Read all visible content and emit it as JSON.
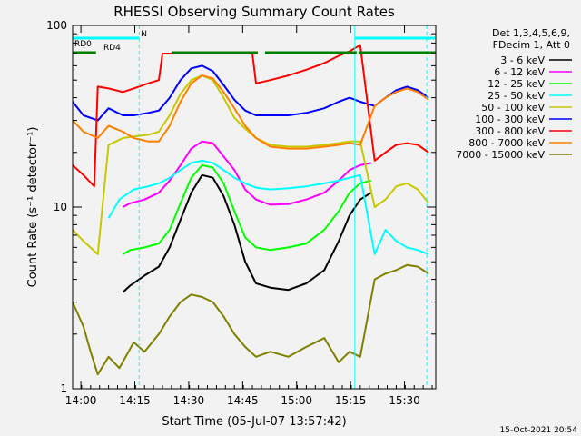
{
  "chart_data": {
    "type": "line",
    "title": "RHESSI Observing Summary Count Rates",
    "xlabel": "Start Time (05-Jul-07 13:57:42)",
    "ylabel": "Count Rate (s⁻¹ detector⁻¹)",
    "x_unit": "minutes after 13:57:42",
    "x_ticks": [
      {
        "label": "14:00",
        "value": 2.3
      },
      {
        "label": "14:15",
        "value": 17.3
      },
      {
        "label": "14:30",
        "value": 32.3
      },
      {
        "label": "14:45",
        "value": 47.3
      },
      {
        "label": "15:00",
        "value": 62.3
      },
      {
        "label": "15:15",
        "value": 77.3
      },
      {
        "label": "15:30",
        "value": 92.3
      }
    ],
    "y_scale": "log",
    "ylim": [
      1,
      100
    ],
    "y_ticks": [
      {
        "label": "1",
        "value": 1
      },
      {
        "label": "10",
        "value": 10
      },
      {
        "label": "100",
        "value": 100
      }
    ],
    "xlim": [
      0,
      101
    ],
    "legend_header": [
      "Det 1,3,4,5,6,9,",
      "FDecim 1, Att 0"
    ],
    "legend_position": "right",
    "series": [
      {
        "name": "3 - 6 keV",
        "color": "#000000",
        "x": [
          14,
          16,
          20,
          24,
          27,
          30,
          33,
          36,
          39,
          42,
          45,
          48,
          51,
          55,
          60,
          65,
          70,
          74,
          77,
          80,
          83
        ],
        "y": [
          3.4,
          3.7,
          4.2,
          4.7,
          6.0,
          8.5,
          12.0,
          15.0,
          14.5,
          11.5,
          8.0,
          5.0,
          3.8,
          3.6,
          3.5,
          3.8,
          4.5,
          6.5,
          9.0,
          11.0,
          12.0
        ]
      },
      {
        "name": "6 - 12 keV",
        "color": "#ff00ff",
        "x": [
          14,
          16,
          20,
          24,
          27,
          30,
          33,
          36,
          39,
          42,
          45,
          48,
          51,
          55,
          60,
          65,
          70,
          74,
          77,
          80,
          83
        ],
        "y": [
          10.0,
          10.5,
          11.0,
          12.0,
          14.0,
          17.0,
          21.0,
          23.0,
          22.5,
          19.0,
          16.0,
          12.5,
          11.0,
          10.3,
          10.4,
          11.0,
          12.0,
          14.0,
          16.0,
          17.0,
          17.5
        ]
      },
      {
        "name": "12 - 25 keV",
        "color": "#00ff00",
        "x": [
          14,
          16,
          20,
          24,
          27,
          30,
          33,
          36,
          39,
          42,
          45,
          48,
          51,
          55,
          60,
          65,
          70,
          74,
          77,
          80,
          83
        ],
        "y": [
          5.5,
          5.8,
          6.0,
          6.3,
          7.5,
          10.5,
          14.5,
          17.0,
          16.5,
          13.5,
          9.5,
          6.8,
          6.0,
          5.8,
          6.0,
          6.3,
          7.5,
          9.5,
          12.0,
          13.5,
          14.0
        ]
      },
      {
        "name": "25 - 50 keV",
        "color": "#00ffff",
        "x": [
          10,
          13,
          17,
          21,
          24,
          27,
          30,
          33,
          36,
          39,
          42,
          45,
          48,
          51,
          55,
          60,
          65,
          70,
          74,
          77,
          80,
          84,
          87,
          90,
          93,
          96,
          99
        ],
        "y": [
          8.7,
          11.0,
          12.5,
          13.0,
          13.5,
          14.5,
          16.0,
          17.5,
          18.0,
          17.5,
          16.0,
          14.5,
          13.5,
          12.8,
          12.5,
          12.7,
          13.0,
          13.5,
          14.0,
          14.5,
          15.0,
          5.5,
          7.5,
          6.5,
          6.0,
          5.8,
          5.5
        ]
      },
      {
        "name": "50 - 100 keV",
        "color": "#c8c800",
        "x": [
          0,
          3,
          7,
          10,
          14,
          17,
          21,
          24,
          27,
          30,
          33,
          36,
          39,
          42,
          45,
          48,
          51,
          55,
          60,
          65,
          70,
          74,
          77,
          80,
          84,
          87,
          90,
          93,
          96,
          99
        ],
        "y": [
          7.5,
          6.5,
          5.5,
          22.0,
          24.0,
          24.5,
          25.0,
          26.0,
          32.0,
          42.0,
          50.0,
          53.0,
          50.0,
          40.0,
          31.0,
          27.0,
          24.0,
          22.0,
          21.5,
          21.5,
          22.0,
          22.5,
          23.0,
          23.0,
          10.0,
          11.0,
          13.0,
          13.5,
          12.5,
          10.5
        ]
      },
      {
        "name": "100 - 300 keV",
        "color": "#0000ff",
        "x": [
          0,
          3,
          7,
          10,
          14,
          17,
          21,
          24,
          27,
          30,
          33,
          36,
          39,
          42,
          45,
          48,
          51,
          55,
          60,
          65,
          70,
          74,
          77,
          80,
          84,
          87,
          90,
          93,
          96,
          99
        ],
        "y": [
          38.0,
          32.0,
          30.0,
          35.0,
          32.0,
          32.0,
          33.0,
          34.0,
          40.0,
          50.0,
          58.0,
          60.0,
          56.0,
          47.0,
          39.0,
          34.0,
          32.0,
          32.0,
          32.0,
          33.0,
          35.0,
          38.0,
          40.0,
          38.0,
          36.0,
          40.0,
          44.0,
          46.0,
          44.0,
          40.0
        ]
      },
      {
        "name": "300 - 800 keV",
        "color": "#ff0000",
        "x": [
          0,
          3,
          6,
          7,
          10,
          14,
          17,
          21,
          24,
          25,
          30,
          35,
          40,
          45,
          50,
          51,
          55,
          60,
          65,
          70,
          74,
          77,
          80,
          84,
          87,
          90,
          93,
          96,
          99
        ],
        "y": [
          17.0,
          15.0,
          13.0,
          46.0,
          45.0,
          43.0,
          45.0,
          48.0,
          50.0,
          70.0,
          70.0,
          70.0,
          70.0,
          70.0,
          70.0,
          48.0,
          50.0,
          53.0,
          57.0,
          62.0,
          68.0,
          72.0,
          78.0,
          18.0,
          20.0,
          22.0,
          22.5,
          22.0,
          20.0
        ]
      },
      {
        "name": "800 - 7000 keV",
        "color": "#ff8000",
        "x": [
          0,
          3,
          7,
          10,
          14,
          17,
          21,
          24,
          27,
          30,
          33,
          36,
          39,
          42,
          45,
          48,
          51,
          55,
          60,
          65,
          70,
          74,
          77,
          80,
          84,
          87,
          90,
          93,
          96,
          99
        ],
        "y": [
          30.0,
          26.0,
          24.0,
          28.0,
          26.0,
          24.0,
          23.0,
          23.0,
          28.0,
          38.0,
          48.0,
          53.0,
          51.0,
          43.0,
          35.0,
          28.0,
          24.0,
          21.5,
          21.0,
          21.0,
          21.5,
          22.0,
          22.5,
          22.0,
          36.0,
          40.0,
          43.0,
          45.0,
          43.0,
          39.0
        ]
      },
      {
        "name": "7000 - 15000 keV",
        "color": "#808000",
        "x": [
          0,
          3,
          5,
          7,
          10,
          13,
          17,
          20,
          24,
          27,
          30,
          33,
          36,
          39,
          42,
          45,
          48,
          51,
          55,
          60,
          65,
          70,
          74,
          77,
          80,
          84,
          87,
          90,
          93,
          96,
          99
        ],
        "y": [
          3.0,
          2.2,
          1.6,
          1.2,
          1.5,
          1.3,
          1.8,
          1.6,
          2.0,
          2.5,
          3.0,
          3.3,
          3.2,
          3.0,
          2.5,
          2.0,
          1.7,
          1.5,
          1.6,
          1.5,
          1.7,
          1.9,
          1.4,
          1.6,
          1.5,
          4.0,
          4.3,
          4.5,
          4.8,
          4.7,
          4.3
        ]
      }
    ],
    "flags": [
      {
        "name": "RD0",
        "color": "#00ffff",
        "segments": [
          [
            0,
            18.5
          ],
          [
            78.5,
            101
          ]
        ]
      },
      {
        "name": "RD4",
        "color": "#008000",
        "segments": [
          [
            0,
            6.5
          ],
          [
            27.5,
            51.5
          ],
          [
            53.5,
            79
          ],
          [
            79.5,
            101
          ]
        ]
      }
    ],
    "flag_text": "N",
    "vlines": [
      {
        "x": 18.5,
        "color": "#00ffff",
        "dashed": true
      },
      {
        "x": 78.5,
        "color": "#00ffff",
        "dashed": false
      },
      {
        "x": 98.5,
        "color": "#00ffff",
        "dashed": true
      }
    ],
    "timestamp": "15-Oct-2021 20:54"
  }
}
